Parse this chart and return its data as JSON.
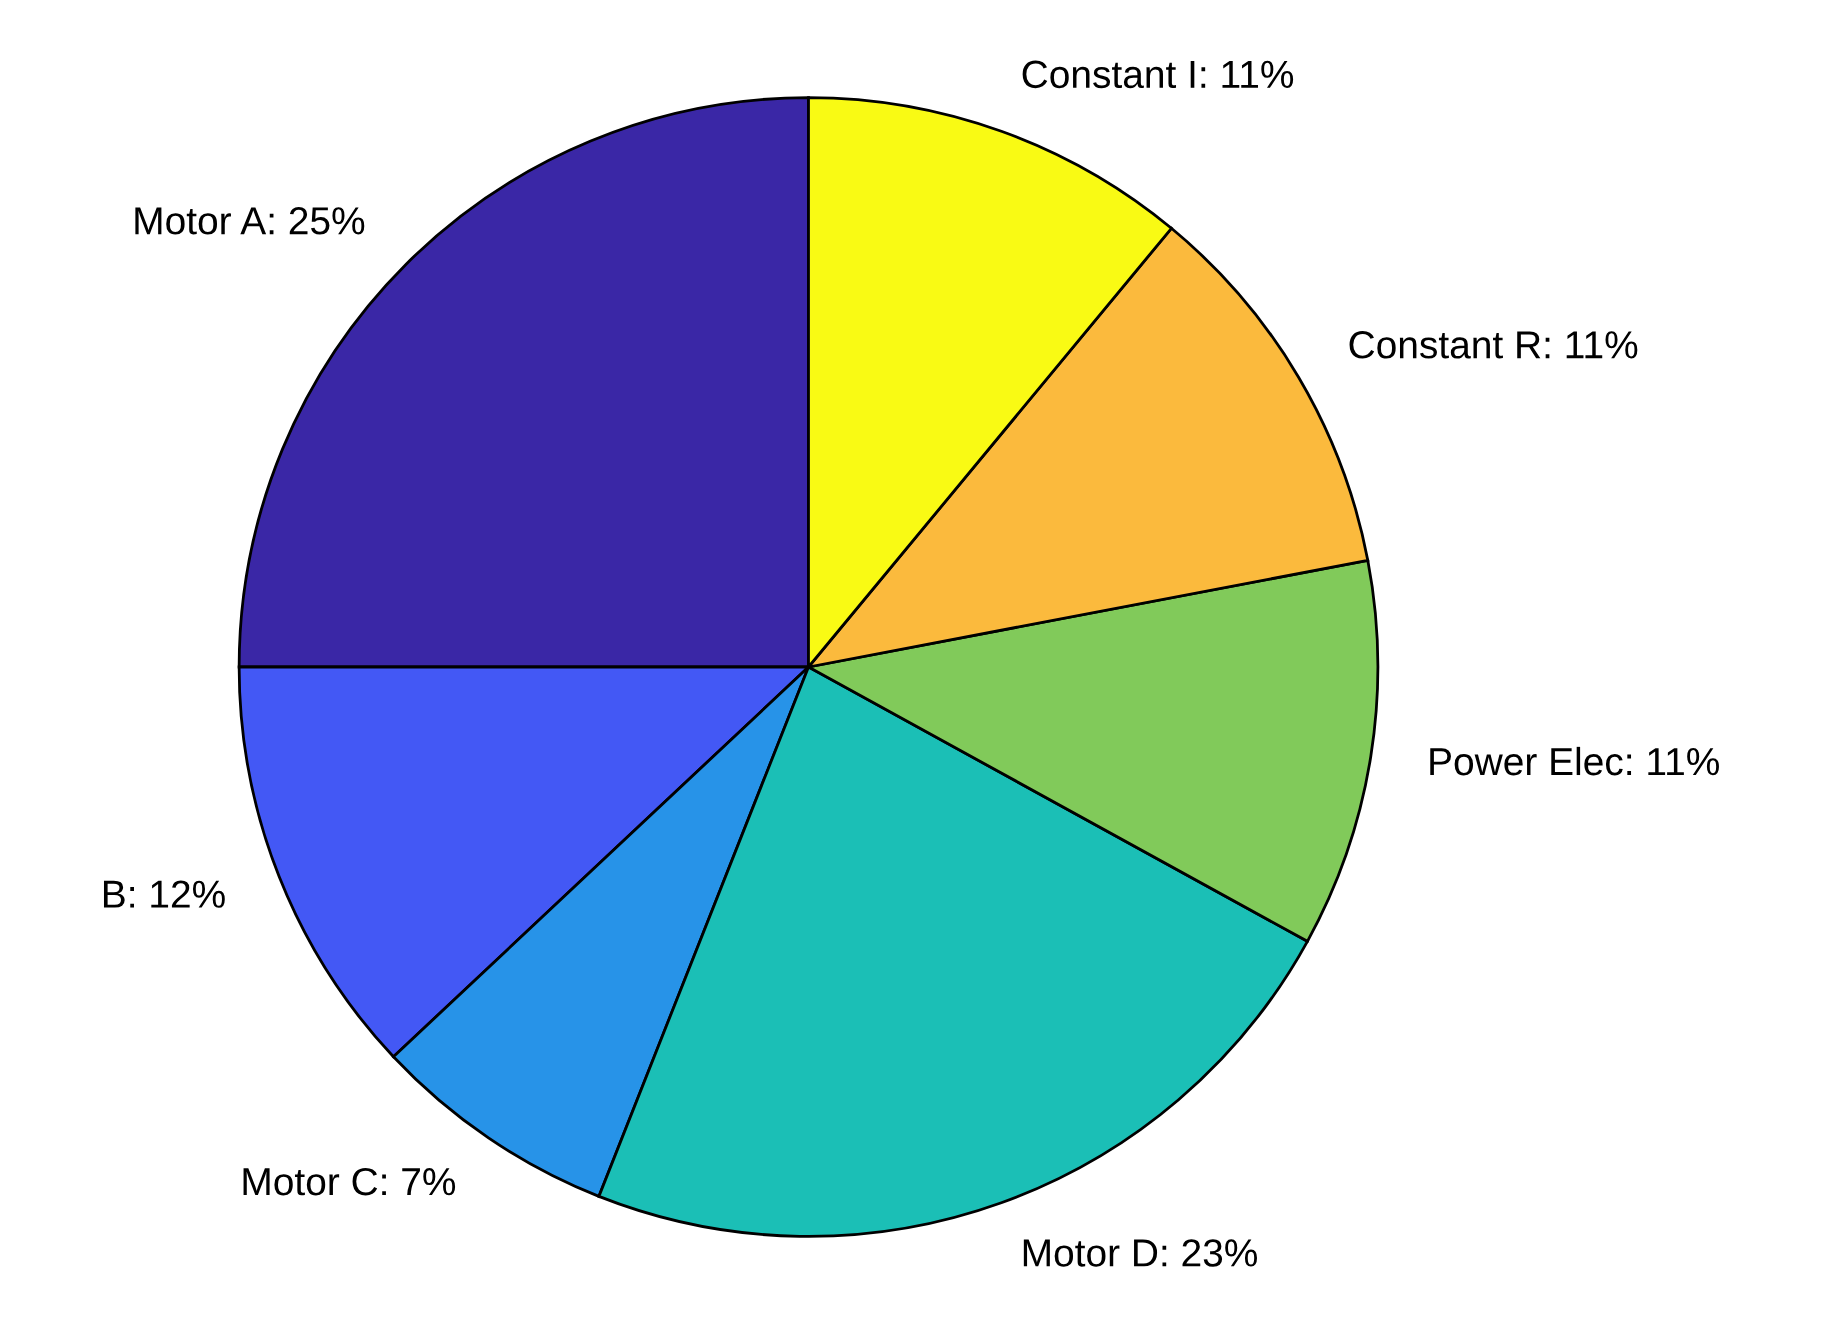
{
  "chart_data": {
    "type": "pie",
    "categories": [
      "Motor A: 25%",
      "B: 12%",
      "Motor C: 7%",
      "Motor D: 23%",
      "Power Elec: 11%",
      "Constant R: 11%",
      "Constant I: 11%"
    ],
    "values": [
      25,
      12,
      7,
      23,
      11,
      11,
      11
    ],
    "colors": [
      "#3a27a6",
      "#4358f5",
      "#2793e8",
      "#1bbfb6",
      "#81ca5a",
      "#fbba3d",
      "#f9fa14"
    ],
    "legend": false
  }
}
